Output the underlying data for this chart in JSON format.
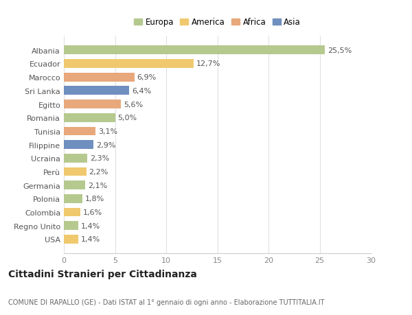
{
  "categories": [
    "Albania",
    "Ecuador",
    "Marocco",
    "Sri Lanka",
    "Egitto",
    "Romania",
    "Tunisia",
    "Filippine",
    "Ucraina",
    "Perù",
    "Germania",
    "Polonia",
    "Colombia",
    "Regno Unito",
    "USA"
  ],
  "values": [
    25.5,
    12.7,
    6.9,
    6.4,
    5.6,
    5.0,
    3.1,
    2.9,
    2.3,
    2.2,
    2.1,
    1.8,
    1.6,
    1.4,
    1.4
  ],
  "labels": [
    "25,5%",
    "12,7%",
    "6,9%",
    "6,4%",
    "5,6%",
    "5,0%",
    "3,1%",
    "2,9%",
    "2,3%",
    "2,2%",
    "2,1%",
    "1,8%",
    "1,6%",
    "1,4%",
    "1,4%"
  ],
  "colors": [
    "#b5c98e",
    "#f0c96e",
    "#e8a87c",
    "#6e8fbf",
    "#e8a87c",
    "#b5c98e",
    "#e8a87c",
    "#6e8fbf",
    "#b5c98e",
    "#f0c96e",
    "#b5c98e",
    "#b5c98e",
    "#f0c96e",
    "#b5c98e",
    "#f0c96e"
  ],
  "legend": [
    {
      "label": "Europa",
      "color": "#b5c98e"
    },
    {
      "label": "America",
      "color": "#f0c96e"
    },
    {
      "label": "Africa",
      "color": "#e8a87c"
    },
    {
      "label": "Asia",
      "color": "#6e8fbf"
    }
  ],
  "title": "Cittadini Stranieri per Cittadinanza",
  "subtitle": "COMUNE DI RAPALLO (GE) - Dati ISTAT al 1° gennaio di ogni anno - Elaborazione TUTTITALIA.IT",
  "xlim": [
    0,
    30
  ],
  "xticks": [
    0,
    5,
    10,
    15,
    20,
    25,
    30
  ],
  "background_color": "#ffffff",
  "bar_height": 0.65,
  "label_fontsize": 8,
  "tick_fontsize": 8,
  "ytick_fontsize": 8,
  "title_fontsize": 10,
  "subtitle_fontsize": 7
}
